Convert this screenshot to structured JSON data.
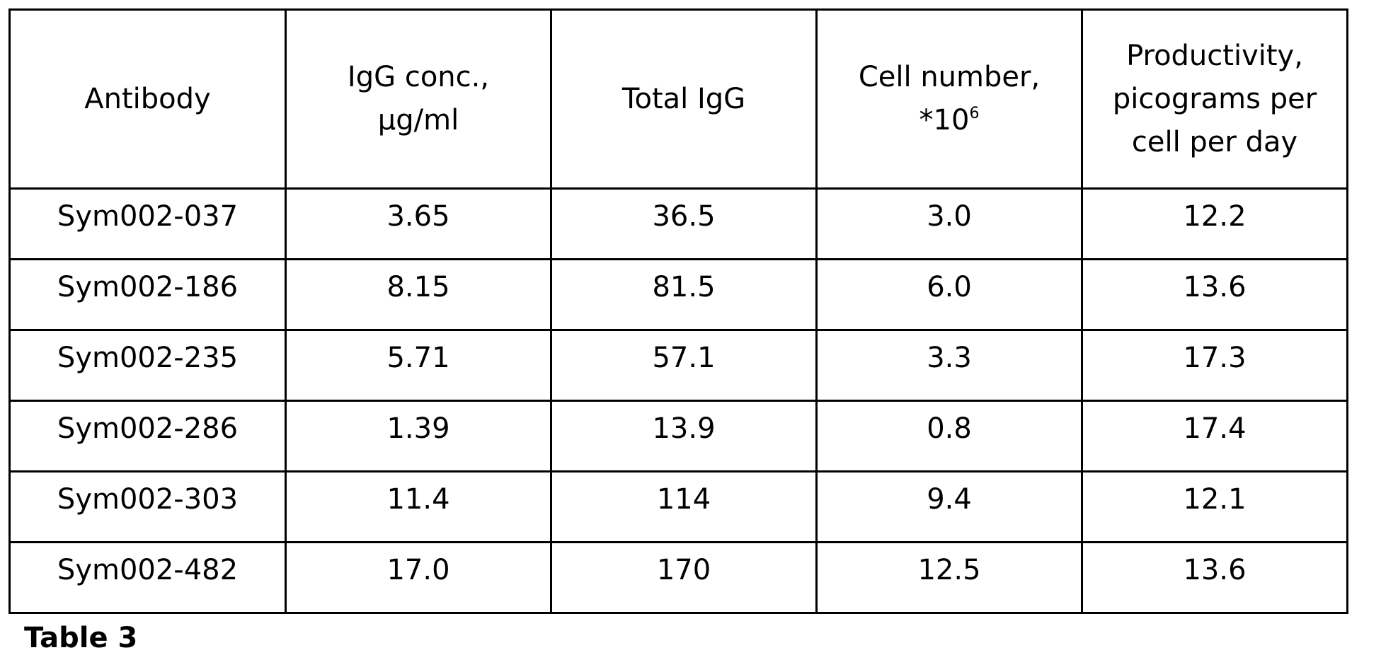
{
  "table": {
    "headers": [
      {
        "lines": [
          "Antibody"
        ]
      },
      {
        "lines": [
          "IgG conc.,",
          "µg/ml"
        ]
      },
      {
        "lines": [
          "Total IgG"
        ]
      },
      {
        "lines": [
          "Cell number,",
          "*10"
        ],
        "superscript": "6"
      },
      {
        "lines": [
          "Productivity,",
          "picograms per",
          "cell per day"
        ]
      }
    ],
    "rows": [
      [
        "Sym002-037",
        "3.65",
        "36.5",
        "3.0",
        "12.2"
      ],
      [
        "Sym002-186",
        "8.15",
        "81.5",
        "6.0",
        "13.6"
      ],
      [
        "Sym002-235",
        "5.71",
        "57.1",
        "3.3",
        "17.3"
      ],
      [
        "Sym002-286",
        "1.39",
        "13.9",
        "0.8",
        "17.4"
      ],
      [
        "Sym002-303",
        "11.4",
        "114",
        "9.4",
        "12.1"
      ],
      [
        "Sym002-482",
        "17.0",
        "170",
        "12.5",
        "13.6"
      ]
    ]
  },
  "caption": "Table 3"
}
